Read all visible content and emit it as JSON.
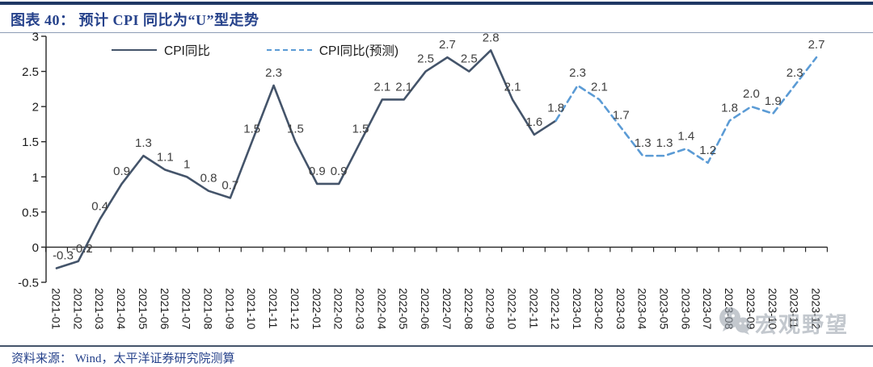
{
  "header": {
    "title": "图表 40： 预计 CPI 同比为“U”型走势"
  },
  "footer": {
    "source": "资料来源： Wind，太平洋证券研究院测算"
  },
  "watermark": {
    "text": "宏观野望",
    "icon": "wechat-bubbles-icon",
    "color": "#98a1ac"
  },
  "legend": {
    "items": [
      {
        "label": "CPI同比",
        "style": "solid",
        "color": "#44546A"
      },
      {
        "label": "CPI同比(预测)",
        "style": "dashed",
        "color": "#5B9BD5"
      }
    ]
  },
  "chart_data": {
    "type": "line",
    "title": "预计CPI同比为“U”型走势",
    "x": [
      "2021-01",
      "2021-02",
      "2021-03",
      "2021-04",
      "2021-05",
      "2021-06",
      "2021-07",
      "2021-08",
      "2021-09",
      "2021-10",
      "2021-11",
      "2021-12",
      "2022-01",
      "2022-02",
      "2022-03",
      "2022-04",
      "2022-05",
      "2022-06",
      "2022-07",
      "2022-08",
      "2022-09",
      "2022-10",
      "2022-11",
      "2022-12",
      "2023-01",
      "2023-02",
      "2023-03",
      "2023-04",
      "2023-05",
      "2023-06",
      "2023-07",
      "2023-08",
      "2023-09",
      "2023-10",
      "2023-11",
      "2023-12"
    ],
    "series": [
      {
        "name": "CPI同比",
        "style": "solid",
        "color": "#44546A",
        "values": [
          -0.3,
          -0.2,
          0.4,
          0.9,
          1.3,
          1.1,
          1,
          0.8,
          0.7,
          1.5,
          2.3,
          1.5,
          0.9,
          0.9,
          1.5,
          2.1,
          2.1,
          2.5,
          2.7,
          2.5,
          2.8,
          2.1,
          1.6,
          1.8,
          null,
          null,
          null,
          null,
          null,
          null,
          null,
          null,
          null,
          null,
          null,
          null
        ]
      },
      {
        "name": "CPI同比(预测)",
        "style": "dashed",
        "color": "#5B9BD5",
        "values": [
          null,
          null,
          null,
          null,
          null,
          null,
          null,
          null,
          null,
          null,
          null,
          null,
          null,
          null,
          null,
          null,
          null,
          null,
          null,
          null,
          null,
          null,
          null,
          1.8,
          2.3,
          2.1,
          1.7,
          1.3,
          1.3,
          1.4,
          1.2,
          1.8,
          2.0,
          1.9,
          2.3,
          2.7
        ]
      }
    ],
    "data_labels": [
      "-0.3",
      "-0.2",
      "0.4",
      "0.9",
      "1.3",
      "1.1",
      "1",
      "0.8",
      "0.7",
      "1.5",
      "2.3",
      "1.5",
      "0.9",
      "0.9",
      "1.5",
      "2.1",
      "2.1",
      "2.5",
      "2.7",
      "2.5",
      "2.8",
      "2.1",
      "1.6",
      "1.8",
      "2.3",
      "2.1",
      "1.7",
      "1.3",
      "1.3",
      "1.4",
      "1.2",
      "1.8",
      "2.0",
      "1.9",
      "2.3",
      "2.7"
    ],
    "ylim": [
      -0.5,
      3
    ],
    "yticks": [
      -0.5,
      0,
      0.5,
      1,
      1.5,
      2,
      2.5,
      3
    ],
    "grid": false,
    "legend_position": "top"
  }
}
